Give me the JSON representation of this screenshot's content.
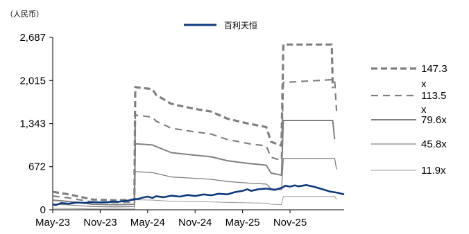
{
  "chart_data": {
    "type": "line",
    "unit_label": "（人民币）",
    "legend_main": "百利天恒",
    "xlabels": [
      "May-23",
      "Nov-23",
      "May-24",
      "Nov-24",
      "May-25",
      "Nov-25"
    ],
    "yticks": [
      "0",
      "672",
      "1,343",
      "2,015",
      "2,687"
    ],
    "ylim": [
      0,
      2687
    ],
    "grid": false,
    "x_range": [
      2023.33,
      2026.4
    ],
    "series": [
      {
        "name": "百利天恒",
        "color": "#0d3a7e",
        "points": [
          [
            2023.33,
            85
          ],
          [
            2023.36,
            72
          ],
          [
            2023.42,
            105
          ],
          [
            2023.5,
            95
          ],
          [
            2023.58,
            112
          ],
          [
            2023.67,
            108
          ],
          [
            2023.75,
            120
          ],
          [
            2023.83,
            115
          ],
          [
            2023.9,
            118
          ],
          [
            2023.97,
            128
          ],
          [
            2024.02,
            125
          ],
          [
            2024.08,
            135
          ],
          [
            2024.15,
            150
          ],
          [
            2024.19,
            165
          ],
          [
            2024.23,
            168
          ],
          [
            2024.28,
            190
          ],
          [
            2024.33,
            205
          ],
          [
            2024.38,
            185
          ],
          [
            2024.42,
            212
          ],
          [
            2024.5,
            195
          ],
          [
            2024.58,
            220
          ],
          [
            2024.67,
            205
          ],
          [
            2024.75,
            230
          ],
          [
            2024.83,
            215
          ],
          [
            2024.92,
            240
          ],
          [
            2025.0,
            225
          ],
          [
            2025.08,
            250
          ],
          [
            2025.17,
            240
          ],
          [
            2025.25,
            275
          ],
          [
            2025.33,
            295
          ],
          [
            2025.38,
            320
          ],
          [
            2025.42,
            295
          ],
          [
            2025.5,
            320
          ],
          [
            2025.58,
            330
          ],
          [
            2025.67,
            310
          ],
          [
            2025.75,
            345
          ],
          [
            2025.78,
            375
          ],
          [
            2025.83,
            360
          ],
          [
            2025.88,
            380
          ],
          [
            2025.92,
            365
          ],
          [
            2026.0,
            385
          ],
          [
            2026.08,
            360
          ],
          [
            2026.17,
            320
          ],
          [
            2026.25,
            285
          ],
          [
            2026.33,
            265
          ],
          [
            2026.4,
            240
          ]
        ]
      },
      {
        "name": "147.3x",
        "color": "#808080",
        "points": [
          [
            2023.33,
            280
          ],
          [
            2023.5,
            240
          ],
          [
            2023.75,
            160
          ],
          [
            2024.0,
            148
          ],
          [
            2024.19,
            160
          ],
          [
            2024.2,
            1912
          ],
          [
            2024.38,
            1880
          ],
          [
            2024.42,
            1790
          ],
          [
            2024.58,
            1650
          ],
          [
            2024.8,
            1580
          ],
          [
            2025.0,
            1530
          ],
          [
            2025.17,
            1420
          ],
          [
            2025.4,
            1340
          ],
          [
            2025.58,
            1290
          ],
          [
            2025.63,
            1060
          ],
          [
            2025.74,
            1000
          ],
          [
            2025.76,
            2576
          ],
          [
            2026.27,
            2576
          ],
          [
            2026.28,
            1895
          ]
        ]
      },
      {
        "name": "113.5x",
        "color": "#808080",
        "points": [
          [
            2023.33,
            215
          ],
          [
            2023.5,
            185
          ],
          [
            2023.75,
            122
          ],
          [
            2024.0,
            112
          ],
          [
            2024.19,
            122
          ],
          [
            2024.2,
            1475
          ],
          [
            2024.38,
            1445
          ],
          [
            2024.42,
            1380
          ],
          [
            2024.58,
            1270
          ],
          [
            2024.8,
            1220
          ],
          [
            2025.0,
            1180
          ],
          [
            2025.17,
            1095
          ],
          [
            2025.4,
            1030
          ],
          [
            2025.58,
            995
          ],
          [
            2025.63,
            818
          ],
          [
            2025.74,
            770
          ],
          [
            2025.76,
            1985
          ],
          [
            2026.3,
            2030
          ],
          [
            2026.32,
            1540
          ]
        ]
      },
      {
        "name": "79.6x",
        "color": "#808080",
        "points": [
          [
            2023.33,
            150
          ],
          [
            2023.5,
            130
          ],
          [
            2023.75,
            86
          ],
          [
            2024.0,
            79
          ],
          [
            2024.19,
            86
          ],
          [
            2024.2,
            1030
          ],
          [
            2024.38,
            1010
          ],
          [
            2024.58,
            890
          ],
          [
            2024.8,
            855
          ],
          [
            2025.0,
            825
          ],
          [
            2025.17,
            765
          ],
          [
            2025.4,
            720
          ],
          [
            2025.58,
            695
          ],
          [
            2025.63,
            572
          ],
          [
            2025.74,
            540
          ],
          [
            2025.76,
            1392
          ],
          [
            2026.28,
            1392
          ],
          [
            2026.3,
            1100
          ]
        ]
      },
      {
        "name": "45.8x",
        "color": "#808080",
        "points": [
          [
            2023.33,
            90
          ],
          [
            2023.5,
            75
          ],
          [
            2023.75,
            50
          ],
          [
            2024.0,
            45
          ],
          [
            2024.19,
            50
          ],
          [
            2024.2,
            595
          ],
          [
            2024.38,
            580
          ],
          [
            2024.58,
            512
          ],
          [
            2024.8,
            492
          ],
          [
            2025.0,
            475
          ],
          [
            2025.17,
            440
          ],
          [
            2025.4,
            415
          ],
          [
            2025.58,
            400
          ],
          [
            2025.63,
            329
          ],
          [
            2025.74,
            310
          ],
          [
            2025.76,
            801
          ],
          [
            2026.3,
            801
          ],
          [
            2026.32,
            630
          ]
        ]
      },
      {
        "name": "11.9x",
        "color": "#9a9a9a",
        "points": [
          [
            2023.33,
            23
          ],
          [
            2023.5,
            20
          ],
          [
            2023.75,
            13
          ],
          [
            2024.0,
            12
          ],
          [
            2024.19,
            13
          ],
          [
            2024.2,
            155
          ],
          [
            2024.38,
            151
          ],
          [
            2024.58,
            133
          ],
          [
            2024.8,
            128
          ],
          [
            2025.0,
            123
          ],
          [
            2025.17,
            114
          ],
          [
            2025.4,
            108
          ],
          [
            2025.58,
            104
          ],
          [
            2025.63,
            86
          ],
          [
            2025.74,
            81
          ],
          [
            2025.76,
            208
          ],
          [
            2026.3,
            208
          ],
          [
            2026.32,
            164
          ]
        ]
      }
    ],
    "right_labels": [
      {
        "text": "147.3",
        "style": "dash-long"
      },
      {
        "text": "x",
        "style": "none"
      },
      {
        "text": "113.5",
        "style": "dash-short"
      },
      {
        "text": "x",
        "style": "none"
      },
      {
        "text": "79.6x",
        "style": "solid-thick"
      },
      {
        "text": "45.8x",
        "style": "solid-mid"
      },
      {
        "text": "11.9x",
        "style": "solid-thin"
      }
    ]
  }
}
